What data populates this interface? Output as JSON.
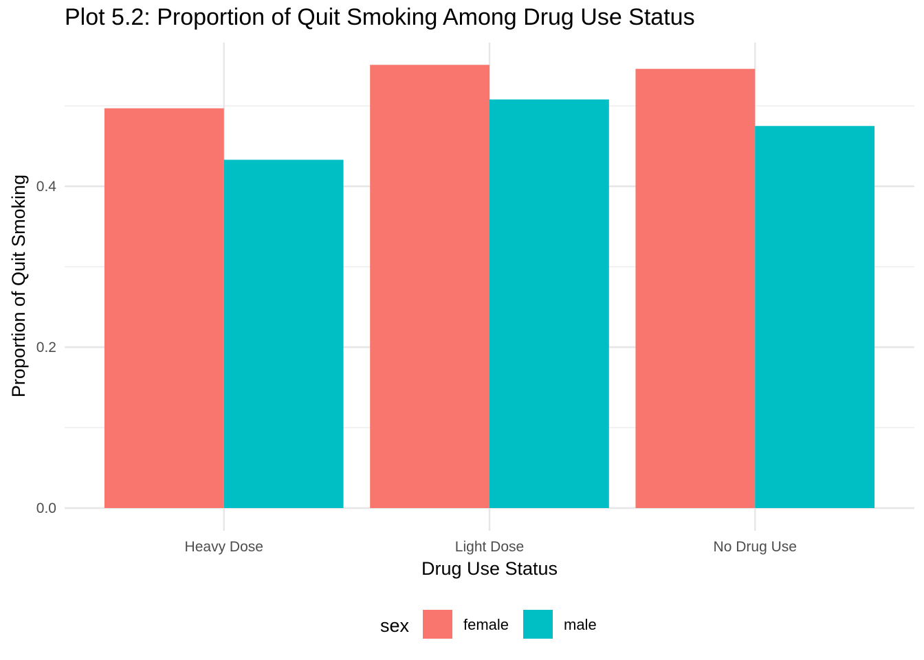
{
  "chart_data": {
    "type": "bar",
    "title": "Plot 5.2: Proportion of Quit Smoking Among Drug Use Status",
    "xlabel": "Drug Use Status",
    "ylabel": "Proportion of Quit Smoking",
    "categories": [
      "Heavy Dose",
      "Light Dose",
      "No Drug Use"
    ],
    "series": [
      {
        "name": "female",
        "color": "#F8766D",
        "values": [
          0.497,
          0.551,
          0.546
        ]
      },
      {
        "name": "male",
        "color": "#00BFC4",
        "values": [
          0.433,
          0.508,
          0.475
        ]
      }
    ],
    "ylim": [
      0,
      0.56
    ],
    "yticks": [
      0.0,
      0.2,
      0.4
    ],
    "ytick_labels": [
      "0.0",
      "0.2",
      "0.4"
    ],
    "grid": true,
    "legend": {
      "title": "sex",
      "placement": "bottom"
    }
  }
}
